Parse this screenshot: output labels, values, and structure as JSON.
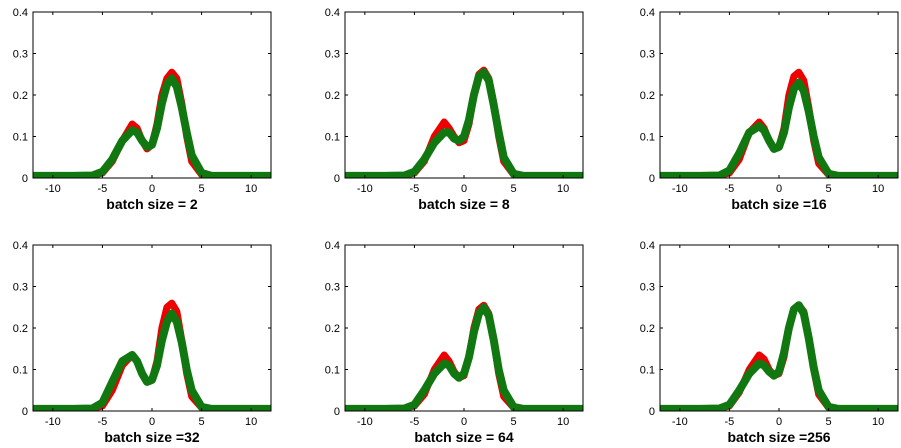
{
  "colors": {
    "red_series": "#ee0000",
    "green_series": "#117711",
    "axis": "#000000",
    "background": "#ffffff"
  },
  "chart_data": [
    {
      "type": "line",
      "title": "batch size = 2",
      "xlim": [
        -12,
        12
      ],
      "ylim": [
        0,
        0.4
      ],
      "xticks": [
        -10,
        -5,
        0,
        5,
        10
      ],
      "yticks": [
        0,
        0.1,
        0.2,
        0.3,
        0.4
      ],
      "series": [
        {
          "color": "red",
          "x": [
            -12,
            -8,
            -6,
            -5,
            -4,
            -3,
            -2,
            -1.5,
            -1,
            -0.5,
            0,
            0.5,
            1,
            1.5,
            2,
            2.5,
            3,
            3.5,
            4,
            5,
            6,
            8,
            12
          ],
          "y": [
            0.005,
            0.005,
            0.006,
            0.012,
            0.04,
            0.09,
            0.13,
            0.12,
            0.09,
            0.07,
            0.08,
            0.13,
            0.2,
            0.24,
            0.255,
            0.24,
            0.18,
            0.1,
            0.04,
            0.008,
            0.005,
            0.005,
            0.005
          ]
        },
        {
          "color": "green",
          "x": [
            -12,
            -8,
            -6,
            -5,
            -4,
            -3,
            -2,
            -1.5,
            -1,
            -0.5,
            0,
            0.5,
            1,
            1.5,
            2,
            2.5,
            3,
            3.5,
            4,
            5,
            6,
            8,
            12
          ],
          "y": [
            0.005,
            0.005,
            0.006,
            0.015,
            0.045,
            0.09,
            0.115,
            0.11,
            0.09,
            0.075,
            0.08,
            0.12,
            0.18,
            0.225,
            0.24,
            0.22,
            0.17,
            0.11,
            0.055,
            0.012,
            0.005,
            0.005,
            0.005
          ]
        }
      ]
    },
    {
      "type": "line",
      "title": "batch size = 8",
      "xlim": [
        -12,
        12
      ],
      "ylim": [
        0,
        0.4
      ],
      "xticks": [
        -10,
        -5,
        0,
        5,
        10
      ],
      "yticks": [
        0,
        0.1,
        0.2,
        0.3,
        0.4
      ],
      "series": [
        {
          "color": "red",
          "x": [
            -12,
            -8,
            -6,
            -5,
            -4,
            -3,
            -2,
            -1.5,
            -1,
            -0.5,
            0,
            0.5,
            1,
            1.5,
            2,
            2.5,
            3,
            3.5,
            4,
            5,
            6,
            8,
            12
          ],
          "y": [
            0.005,
            0.005,
            0.006,
            0.012,
            0.04,
            0.1,
            0.135,
            0.12,
            0.1,
            0.085,
            0.09,
            0.13,
            0.2,
            0.25,
            0.26,
            0.24,
            0.18,
            0.1,
            0.04,
            0.008,
            0.005,
            0.005,
            0.005
          ]
        },
        {
          "color": "green",
          "x": [
            -12,
            -8,
            -6,
            -5,
            -4,
            -3,
            -2,
            -1.5,
            -1,
            -0.5,
            0,
            0.5,
            1,
            1.5,
            2,
            2.5,
            3,
            3.5,
            4,
            5,
            6,
            8,
            12
          ],
          "y": [
            0.005,
            0.005,
            0.006,
            0.015,
            0.045,
            0.085,
            0.11,
            0.11,
            0.095,
            0.09,
            0.1,
            0.14,
            0.2,
            0.245,
            0.255,
            0.235,
            0.175,
            0.11,
            0.05,
            0.01,
            0.005,
            0.005,
            0.005
          ]
        }
      ]
    },
    {
      "type": "line",
      "title": "batch size =16",
      "xlim": [
        -12,
        12
      ],
      "ylim": [
        0,
        0.4
      ],
      "xticks": [
        -10,
        -5,
        0,
        5,
        10
      ],
      "yticks": [
        0,
        0.1,
        0.2,
        0.3,
        0.4
      ],
      "series": [
        {
          "color": "red",
          "x": [
            -12,
            -8,
            -6,
            -5,
            -4,
            -3,
            -2,
            -1.5,
            -1,
            -0.5,
            0,
            0.5,
            1,
            1.5,
            2,
            2.5,
            3,
            3.5,
            4,
            5,
            6,
            8,
            12
          ],
          "y": [
            0.005,
            0.005,
            0.006,
            0.012,
            0.045,
            0.11,
            0.135,
            0.12,
            0.09,
            0.07,
            0.075,
            0.12,
            0.2,
            0.245,
            0.255,
            0.235,
            0.17,
            0.09,
            0.035,
            0.008,
            0.005,
            0.005,
            0.005
          ]
        },
        {
          "color": "green",
          "x": [
            -12,
            -8,
            -6,
            -5,
            -4,
            -3,
            -2,
            -1.5,
            -1,
            -0.5,
            0,
            0.5,
            1,
            1.5,
            2,
            2.5,
            3,
            3.5,
            4,
            5,
            6,
            8,
            12
          ],
          "y": [
            0.005,
            0.005,
            0.006,
            0.018,
            0.06,
            0.11,
            0.125,
            0.115,
            0.09,
            0.07,
            0.075,
            0.11,
            0.17,
            0.215,
            0.23,
            0.21,
            0.16,
            0.1,
            0.05,
            0.01,
            0.005,
            0.005,
            0.005
          ]
        }
      ]
    },
    {
      "type": "line",
      "title": "batch size =32",
      "xlim": [
        -12,
        12
      ],
      "ylim": [
        0,
        0.4
      ],
      "xticks": [
        -10,
        -5,
        0,
        5,
        10
      ],
      "yticks": [
        0,
        0.1,
        0.2,
        0.3,
        0.4
      ],
      "series": [
        {
          "color": "red",
          "x": [
            -12,
            -8,
            -6,
            -5,
            -4,
            -3,
            -2,
            -1.5,
            -1,
            -0.5,
            0,
            0.5,
            1,
            1.5,
            2,
            2.5,
            3,
            3.5,
            4,
            5,
            6,
            8,
            12
          ],
          "y": [
            0.005,
            0.005,
            0.006,
            0.012,
            0.05,
            0.11,
            0.135,
            0.12,
            0.09,
            0.07,
            0.075,
            0.12,
            0.2,
            0.25,
            0.26,
            0.24,
            0.17,
            0.09,
            0.035,
            0.008,
            0.005,
            0.005,
            0.005
          ]
        },
        {
          "color": "green",
          "x": [
            -12,
            -8,
            -6,
            -5,
            -4,
            -3,
            -2,
            -1.5,
            -1,
            -0.5,
            0,
            0.5,
            1,
            1.5,
            2,
            2.5,
            3,
            3.5,
            4,
            5,
            6,
            8,
            12
          ],
          "y": [
            0.005,
            0.005,
            0.006,
            0.02,
            0.07,
            0.12,
            0.135,
            0.12,
            0.09,
            0.07,
            0.075,
            0.11,
            0.17,
            0.215,
            0.235,
            0.215,
            0.165,
            0.1,
            0.05,
            0.01,
            0.005,
            0.005,
            0.005
          ]
        }
      ]
    },
    {
      "type": "line",
      "title": "batch size = 64",
      "xlim": [
        -12,
        12
      ],
      "ylim": [
        0,
        0.4
      ],
      "xticks": [
        -10,
        -5,
        0,
        5,
        10
      ],
      "yticks": [
        0,
        0.1,
        0.2,
        0.3,
        0.4
      ],
      "series": [
        {
          "color": "red",
          "x": [
            -12,
            -8,
            -6,
            -5,
            -4,
            -3,
            -2,
            -1.5,
            -1,
            -0.5,
            0,
            0.5,
            1,
            1.5,
            2,
            2.5,
            3,
            3.5,
            4,
            5,
            6,
            8,
            12
          ],
          "y": [
            0.005,
            0.005,
            0.006,
            0.012,
            0.04,
            0.1,
            0.135,
            0.12,
            0.095,
            0.08,
            0.085,
            0.13,
            0.2,
            0.245,
            0.255,
            0.235,
            0.17,
            0.09,
            0.035,
            0.008,
            0.005,
            0.005,
            0.005
          ]
        },
        {
          "color": "green",
          "x": [
            -12,
            -8,
            -6,
            -5,
            -4,
            -3,
            -2,
            -1.5,
            -1,
            -0.5,
            0,
            0.5,
            1,
            1.5,
            2,
            2.5,
            3,
            3.5,
            4,
            5,
            6,
            8,
            12
          ],
          "y": [
            0.005,
            0.005,
            0.006,
            0.015,
            0.05,
            0.09,
            0.115,
            0.11,
            0.09,
            0.08,
            0.09,
            0.13,
            0.19,
            0.235,
            0.25,
            0.23,
            0.17,
            0.1,
            0.05,
            0.01,
            0.005,
            0.005,
            0.005
          ]
        }
      ]
    },
    {
      "type": "line",
      "title": "batch size =256",
      "xlim": [
        -12,
        12
      ],
      "ylim": [
        0,
        0.4
      ],
      "xticks": [
        -10,
        -5,
        0,
        5,
        10
      ],
      "yticks": [
        0,
        0.1,
        0.2,
        0.3,
        0.4
      ],
      "series": [
        {
          "color": "red",
          "x": [
            -12,
            -8,
            -6,
            -5,
            -4,
            -3,
            -2,
            -1.5,
            -1,
            -0.5,
            0,
            0.5,
            1,
            1.5,
            2,
            2.5,
            3,
            3.5,
            4,
            5,
            6,
            8,
            12
          ],
          "y": [
            0.005,
            0.005,
            0.006,
            0.012,
            0.045,
            0.1,
            0.135,
            0.125,
            0.1,
            0.085,
            0.09,
            0.13,
            0.2,
            0.245,
            0.255,
            0.24,
            0.175,
            0.1,
            0.04,
            0.008,
            0.005,
            0.005,
            0.005
          ]
        },
        {
          "color": "green",
          "x": [
            -12,
            -8,
            -6,
            -5,
            -4,
            -3,
            -2,
            -1.5,
            -1,
            -0.5,
            0,
            0.5,
            1,
            1.5,
            2,
            2.5,
            3,
            3.5,
            4,
            5,
            6,
            8,
            12
          ],
          "y": [
            0.005,
            0.005,
            0.006,
            0.015,
            0.05,
            0.09,
            0.115,
            0.11,
            0.095,
            0.085,
            0.095,
            0.14,
            0.2,
            0.245,
            0.255,
            0.235,
            0.175,
            0.105,
            0.05,
            0.01,
            0.005,
            0.005,
            0.005
          ]
        }
      ]
    }
  ]
}
